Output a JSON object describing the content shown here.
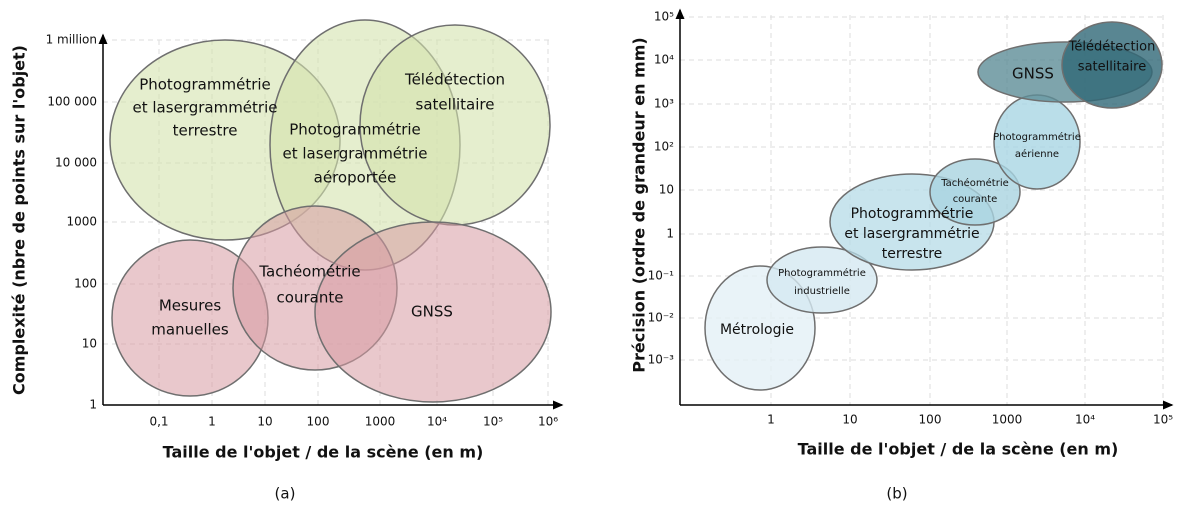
{
  "panels": [
    {
      "caption": "(a)",
      "x_label": "Taille de l'objet / de la scène (en m)",
      "y_label": "Complexité (nbre de points sur l'objet)",
      "y_ticks": [
        "1 million",
        "100 000",
        "10 000",
        "1000",
        "100",
        "10",
        "1"
      ],
      "x_ticks": [
        "0,1",
        "1",
        "10",
        "100",
        "1000",
        "10⁴",
        "10⁵",
        "10⁶"
      ],
      "regions": [
        {
          "lines": [
            "Photogrammétrie",
            "et lasergrammétrie",
            "terrestre"
          ]
        },
        {
          "lines": [
            "Photogrammétrie",
            "et lasergrammétrie",
            "aéroportée"
          ]
        },
        {
          "lines": [
            "Télédétection",
            "satellitaire"
          ]
        },
        {
          "lines": [
            "Mesures",
            "manuelles"
          ]
        },
        {
          "lines": [
            "Tachéométrie",
            "courante"
          ]
        },
        {
          "lines": [
            "GNSS"
          ]
        }
      ]
    },
    {
      "caption": "(b)",
      "x_label": "Taille de l'objet / de la scène (en m)",
      "y_label": "Précision (ordre de grandeur en mm)",
      "y_ticks": [
        "10⁵",
        "10⁴",
        "10³",
        "10²",
        "10",
        "1",
        "10⁻¹",
        "10⁻²",
        "10⁻³"
      ],
      "x_ticks": [
        "1",
        "10",
        "100",
        "1000",
        "10⁴",
        "10⁵"
      ],
      "regions": [
        {
          "lines": [
            "Métrologie"
          ]
        },
        {
          "lines": [
            "Photogrammétrie",
            "industrielle"
          ]
        },
        {
          "lines": [
            "Photogrammétrie",
            "et lasergrammétrie",
            "terrestre"
          ]
        },
        {
          "lines": [
            "Tachéométrie",
            "courante"
          ]
        },
        {
          "lines": [
            "Photogrammétrie",
            "aérienne"
          ]
        },
        {
          "lines": [
            "GNSS"
          ]
        },
        {
          "lines": [
            "Télédétection",
            "satellitaire"
          ]
        }
      ]
    }
  ]
}
